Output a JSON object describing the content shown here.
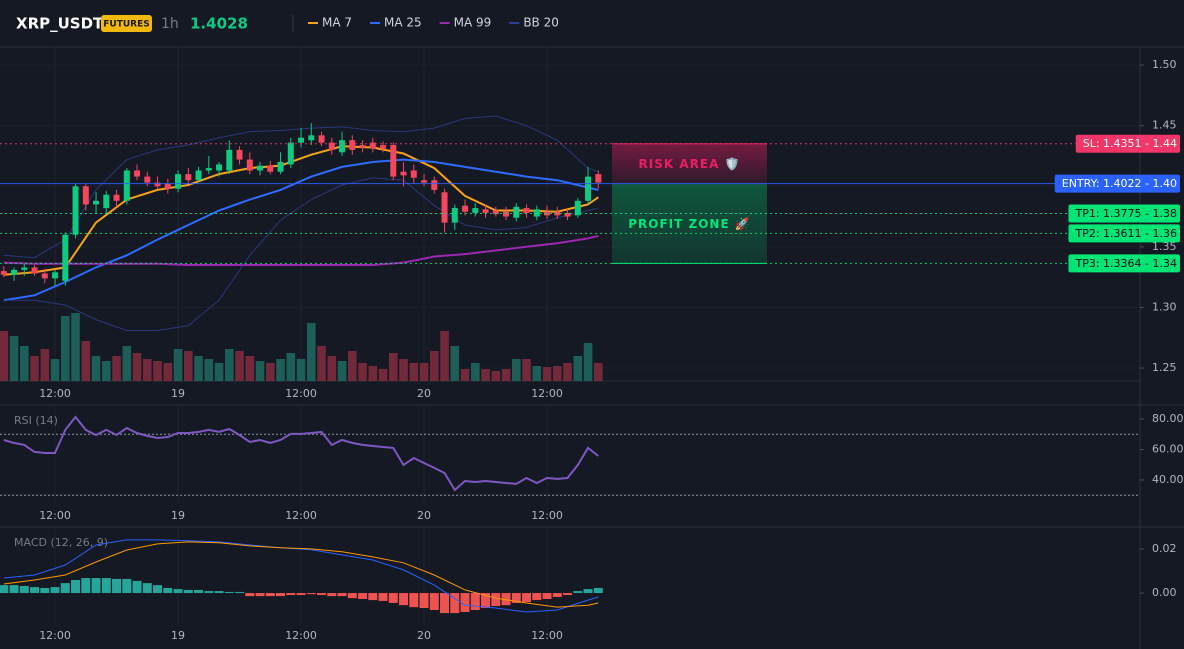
{
  "header": {
    "symbol": "XRP_USDT",
    "badge": "FUTURES",
    "interval": "1h",
    "price": 1.4028
  },
  "chart_data": [
    {
      "type": "candlestick",
      "xlim": [
        -0.37,
        110.85
      ],
      "xticks": [
        {
          "value": 5,
          "label": "12:00"
        },
        {
          "value": 17,
          "label": "19"
        },
        {
          "value": 29,
          "label": "12:00"
        },
        {
          "value": 41,
          "label": "20"
        },
        {
          "value": 53,
          "label": "12:00"
        }
      ],
      "ylim": [
        1.2393,
        1.5149
      ],
      "yticks": [
        1.25,
        {
          "value": 1.3,
          "label": "1.30"
        },
        1.35,
        {
          "value": 1.4,
          "label": "1.40"
        },
        1.45,
        {
          "value": 1.5,
          "label": "1.50"
        }
      ],
      "grid": true,
      "up_color": "#0ecb81",
      "down_color": "#f6465d",
      "volume_up_color": "#1d5e59",
      "volume_down_color": "#72293a",
      "ohlc": [
        [
          1.33,
          1.334,
          1.325,
          1.327
        ],
        [
          1.327,
          1.333,
          1.322,
          1.331
        ],
        [
          1.331,
          1.336,
          1.326,
          1.333
        ],
        [
          1.333,
          1.335,
          1.326,
          1.328
        ],
        [
          1.328,
          1.332,
          1.32,
          1.324
        ],
        [
          1.324,
          1.331,
          1.318,
          1.329
        ],
        [
          1.322,
          1.362,
          1.318,
          1.36
        ],
        [
          1.36,
          1.402,
          1.357,
          1.4
        ],
        [
          1.4,
          1.402,
          1.38,
          1.385
        ],
        [
          1.385,
          1.395,
          1.378,
          1.388
        ],
        [
          1.382,
          1.396,
          1.377,
          1.393
        ],
        [
          1.393,
          1.397,
          1.383,
          1.388
        ],
        [
          1.388,
          1.415,
          1.385,
          1.413
        ],
        [
          1.413,
          1.418,
          1.405,
          1.408
        ],
        [
          1.408,
          1.412,
          1.4,
          1.403
        ],
        [
          1.403,
          1.408,
          1.398,
          1.4
        ],
        [
          1.402,
          1.406,
          1.394,
          1.398
        ],
        [
          1.398,
          1.413,
          1.395,
          1.41
        ],
        [
          1.41,
          1.415,
          1.402,
          1.405
        ],
        [
          1.405,
          1.416,
          1.403,
          1.413
        ],
        [
          1.413,
          1.425,
          1.41,
          1.415
        ],
        [
          1.413,
          1.42,
          1.408,
          1.418
        ],
        [
          1.413,
          1.438,
          1.41,
          1.43
        ],
        [
          1.43,
          1.433,
          1.418,
          1.422
        ],
        [
          1.422,
          1.428,
          1.41,
          1.413
        ],
        [
          1.413,
          1.42,
          1.409,
          1.417
        ],
        [
          1.417,
          1.421,
          1.41,
          1.412
        ],
        [
          1.412,
          1.428,
          1.41,
          1.42
        ],
        [
          1.418,
          1.44,
          1.415,
          1.436
        ],
        [
          1.436,
          1.448,
          1.432,
          1.44
        ],
        [
          1.438,
          1.452,
          1.434,
          1.442
        ],
        [
          1.442,
          1.445,
          1.433,
          1.436
        ],
        [
          1.436,
          1.44,
          1.426,
          1.43
        ],
        [
          1.428,
          1.445,
          1.425,
          1.438
        ],
        [
          1.438,
          1.442,
          1.426,
          1.43
        ],
        [
          1.434,
          1.438,
          1.428,
          1.432
        ],
        [
          1.436,
          1.44,
          1.428,
          1.431
        ],
        [
          1.434,
          1.437,
          1.428,
          1.431
        ],
        [
          1.434,
          1.436,
          1.405,
          1.408
        ],
        [
          1.412,
          1.42,
          1.4,
          1.409
        ],
        [
          1.413,
          1.418,
          1.402,
          1.407
        ],
        [
          1.405,
          1.41,
          1.4,
          1.403
        ],
        [
          1.405,
          1.408,
          1.394,
          1.397
        ],
        [
          1.395,
          1.398,
          1.362,
          1.37
        ],
        [
          1.37,
          1.385,
          1.364,
          1.382
        ],
        [
          1.384,
          1.389,
          1.376,
          1.379
        ],
        [
          1.378,
          1.386,
          1.375,
          1.382
        ],
        [
          1.381,
          1.385,
          1.374,
          1.378
        ],
        [
          1.38,
          1.383,
          1.375,
          1.377
        ],
        [
          1.379,
          1.383,
          1.372,
          1.375
        ],
        [
          1.374,
          1.386,
          1.371,
          1.383
        ],
        [
          1.382,
          1.385,
          1.374,
          1.378
        ],
        [
          1.375,
          1.384,
          1.372,
          1.381
        ],
        [
          1.379,
          1.384,
          1.373,
          1.376
        ],
        [
          1.379,
          1.383,
          1.373,
          1.376
        ],
        [
          1.378,
          1.381,
          1.372,
          1.375
        ],
        [
          1.376,
          1.39,
          1.374,
          1.388
        ],
        [
          1.388,
          1.416,
          1.385,
          1.408
        ],
        [
          1.41,
          1.413,
          1.398,
          1.403
        ]
      ],
      "volumes": [
        50,
        45,
        35,
        25,
        32,
        22,
        65,
        68,
        40,
        25,
        20,
        25,
        35,
        28,
        22,
        20,
        18,
        32,
        30,
        25,
        22,
        18,
        32,
        30,
        25,
        20,
        18,
        22,
        28,
        22,
        58,
        35,
        25,
        20,
        30,
        18,
        15,
        12,
        28,
        22,
        18,
        18,
        30,
        50,
        35,
        12,
        18,
        12,
        10,
        12,
        22,
        22,
        15,
        14,
        15,
        18,
        25,
        38,
        18
      ],
      "overlay_x": [
        0,
        3,
        6,
        9,
        12,
        15,
        18,
        21,
        24,
        27,
        30,
        33,
        36,
        39,
        42,
        45,
        48,
        51,
        54,
        57,
        58
      ],
      "overlays": [
        {
          "name": "MA 7",
          "color": "#f7a21b",
          "values": [
            1.327,
            1.329,
            1.333,
            1.37,
            1.389,
            1.397,
            1.401,
            1.41,
            1.415,
            1.417,
            1.426,
            1.433,
            1.432,
            1.427,
            1.415,
            1.392,
            1.38,
            1.38,
            1.379,
            1.385,
            1.391
          ]
        },
        {
          "name": "MA 25",
          "color": "#2f6bff",
          "values": [
            1.306,
            1.31,
            1.321,
            1.333,
            1.343,
            1.356,
            1.368,
            1.38,
            1.389,
            1.397,
            1.408,
            1.416,
            1.42,
            1.422,
            1.42,
            1.416,
            1.412,
            1.408,
            1.405,
            1.399,
            1.397
          ]
        },
        {
          "name": "MA 99",
          "color": "#9c27b0",
          "values": [
            1.337,
            1.336,
            1.336,
            1.336,
            1.336,
            1.336,
            1.335,
            1.335,
            1.335,
            1.335,
            1.335,
            1.335,
            1.335,
            1.337,
            1.342,
            1.344,
            1.347,
            1.35,
            1.353,
            1.357,
            1.359
          ]
        },
        {
          "name": "BB 20",
          "color": "#2f3f96",
          "upper": [
            1.343,
            1.341,
            1.356,
            1.397,
            1.422,
            1.43,
            1.434,
            1.44,
            1.445,
            1.446,
            1.448,
            1.449,
            1.446,
            1.445,
            1.448,
            1.456,
            1.458,
            1.45,
            1.438,
            1.415,
            1.412
          ],
          "lower": [
            1.306,
            1.306,
            1.302,
            1.29,
            1.281,
            1.281,
            1.285,
            1.306,
            1.343,
            1.372,
            1.389,
            1.401,
            1.407,
            1.405,
            1.384,
            1.368,
            1.364,
            1.366,
            1.374,
            1.38,
            1.382
          ]
        }
      ],
      "levels": [
        {
          "label": "SL: 1.4351 - 1.44",
          "value": 1.4351,
          "color": "#f23667",
          "text_color": "#ffffff",
          "style": "dotted"
        },
        {
          "label": "ENTRY: 1.4022 - 1.40",
          "value": 1.4022,
          "color": "#2962ff",
          "text_color": "#ffffff",
          "style": "solid"
        },
        {
          "label": "TP1: 1.3775 - 1.38",
          "value": 1.3775,
          "color": "#00e676",
          "text_color": "#0b0e11",
          "style": "dotted"
        },
        {
          "label": "TP2: 1.3611 - 1.36",
          "value": 1.3611,
          "color": "#00e676",
          "text_color": "#0b0e11",
          "style": "dotted"
        },
        {
          "label": "TP3: 1.3364 - 1.34",
          "value": 1.3364,
          "color": "#00e676",
          "text_color": "#0b0e11",
          "style": "dotted"
        }
      ],
      "zones": [
        {
          "label": "RISK AREA 🛡️",
          "color": "#e91e63"
        },
        {
          "label": "PROFIT ZONE 🚀",
          "color": "#00e676"
        }
      ]
    },
    {
      "type": "line",
      "title": "RSI (14)",
      "xlim": [
        -0.37,
        110.85
      ],
      "xticks": [
        {
          "value": 5,
          "label": "12:00"
        },
        {
          "value": 17,
          "label": "19"
        },
        {
          "value": 29,
          "label": "12:00"
        },
        {
          "value": 41,
          "label": "20"
        },
        {
          "value": 53,
          "label": "12:00"
        }
      ],
      "ylim": [
        24.9,
        88.5
      ],
      "yticks": [
        {
          "value": 80,
          "label": "80.00"
        },
        {
          "value": 60,
          "label": "60.00"
        },
        {
          "value": 40,
          "label": "40.00"
        }
      ],
      "levels": [
        70,
        30
      ],
      "color": "#7e57c2",
      "values": [
        66.2,
        64.3,
        63.0,
        58.4,
        57.7,
        57.7,
        72.8,
        81.3,
        72.8,
        69.5,
        72.8,
        69.5,
        74.1,
        70.8,
        68.9,
        67.5,
        68.2,
        70.8,
        70.8,
        71.5,
        72.8,
        71.5,
        73.4,
        69.5,
        64.9,
        66.2,
        64.3,
        66.2,
        70.2,
        70.2,
        70.8,
        71.5,
        63.0,
        66.2,
        64.3,
        63.0,
        62.3,
        61.6,
        61.0,
        49.8,
        54.4,
        51.1,
        47.9,
        44.6,
        33.4,
        39.3,
        38.7,
        39.3,
        38.7,
        38.0,
        37.4,
        41.3,
        38.0,
        41.3,
        40.7,
        41.3,
        49.8,
        61.0,
        55.7
      ]
    },
    {
      "type": "macd",
      "title": "MACD (12, 26, 9)",
      "xlim": [
        -0.37,
        110.85
      ],
      "xticks": [
        {
          "value": 5,
          "label": "12:00"
        },
        {
          "value": 17,
          "label": "19"
        },
        {
          "value": 29,
          "label": "12:00"
        },
        {
          "value": 41,
          "label": "20"
        },
        {
          "value": 53,
          "label": "12:00"
        }
      ],
      "ylim": [
        -0.0145,
        0.0295
      ],
      "yticks": [
        0.02,
        {
          "value": 0,
          "label": "0.00"
        }
      ],
      "up_color": "#26a69a",
      "down_color": "#ef5350",
      "histogram": [
        0.0036,
        0.0036,
        0.0032,
        0.0027,
        0.0023,
        0.0027,
        0.0045,
        0.0059,
        0.0068,
        0.0068,
        0.0068,
        0.0064,
        0.0064,
        0.0055,
        0.0045,
        0.0036,
        0.0023,
        0.0018,
        0.0014,
        0.0014,
        0.0009,
        0.0009,
        0.0005,
        0.0005,
        -0.0014,
        -0.0014,
        -0.0014,
        -0.0014,
        -0.0009,
        -0.0009,
        -0.0005,
        -0.0009,
        -0.0014,
        -0.0014,
        -0.0023,
        -0.0027,
        -0.0032,
        -0.0036,
        -0.0045,
        -0.0055,
        -0.0064,
        -0.0068,
        -0.0077,
        -0.0091,
        -0.0091,
        -0.0086,
        -0.0077,
        -0.0068,
        -0.0059,
        -0.0055,
        -0.0045,
        -0.0041,
        -0.0032,
        -0.0027,
        -0.0018,
        -0.0009,
        0.0009,
        0.0018,
        0.0023
      ],
      "x": [
        0,
        3,
        6,
        9,
        12,
        15,
        18,
        21,
        24,
        27,
        30,
        33,
        36,
        39,
        42,
        45,
        48,
        51,
        54,
        57,
        58
      ],
      "series": [
        {
          "color": "#2962ff",
          "values": [
            0.0068,
            0.0082,
            0.0127,
            0.0218,
            0.0241,
            0.0241,
            0.0237,
            0.0232,
            0.0218,
            0.0205,
            0.0196,
            0.0173,
            0.015,
            0.0105,
            0.0036,
            -0.0055,
            -0.0068,
            -0.0086,
            -0.0077,
            -0.0032,
            -0.0018
          ]
        },
        {
          "color": "#ff9800",
          "values": [
            0.0041,
            0.0059,
            0.0082,
            0.0141,
            0.0195,
            0.0223,
            0.0232,
            0.0228,
            0.0214,
            0.0205,
            0.02,
            0.0187,
            0.0164,
            0.0137,
            0.0082,
            0.0014,
            -0.0023,
            -0.0045,
            -0.0064,
            -0.0055,
            -0.0045
          ]
        }
      ]
    }
  ]
}
